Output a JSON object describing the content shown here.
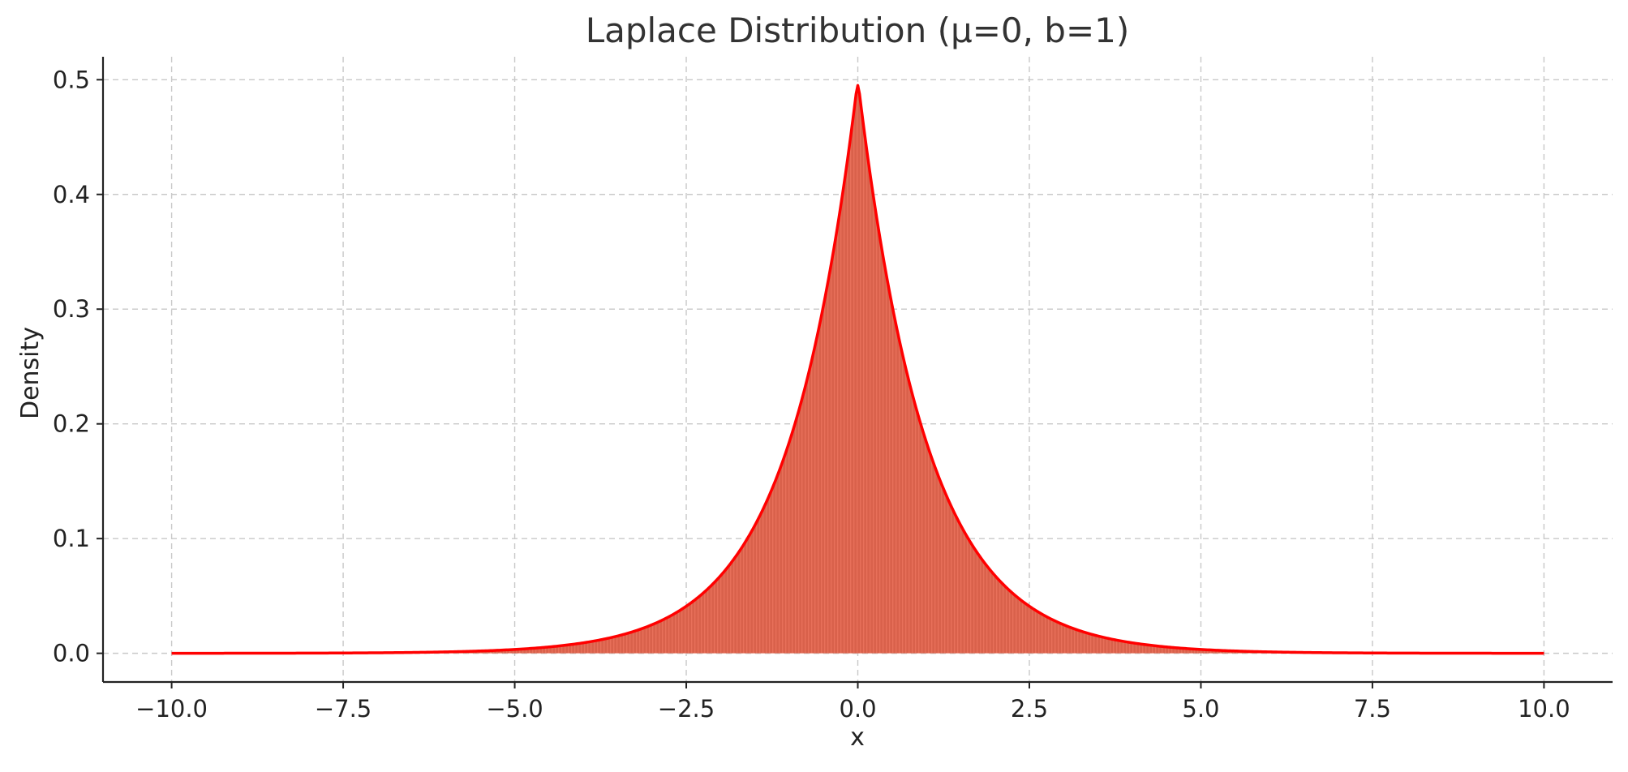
{
  "chart_data": {
    "type": "area",
    "title": "Laplace Distribution (μ=0, b=1)",
    "xlabel": "x",
    "ylabel": "Density",
    "xlim": [
      -11.0,
      11.0
    ],
    "ylim": [
      -0.025,
      0.52
    ],
    "x_ticks": [
      -10.0,
      -7.5,
      -5.0,
      -2.5,
      0.0,
      2.5,
      5.0,
      7.5,
      10.0
    ],
    "x_tick_labels": [
      "−10.0",
      "−7.5",
      "−5.0",
      "−2.5",
      "0.0",
      "2.5",
      "5.0",
      "7.5",
      "10.0"
    ],
    "y_ticks": [
      0.0,
      0.1,
      0.2,
      0.3,
      0.4,
      0.5
    ],
    "y_tick_labels": [
      "0.0",
      "0.1",
      "0.2",
      "0.3",
      "0.4",
      "0.5"
    ],
    "grid": true,
    "distribution": {
      "mu": 0,
      "b": 1
    },
    "series": [
      {
        "x": [
          -10.0,
          -9.0,
          -8.0,
          -7.0,
          -6.0,
          -5.0,
          -4.5,
          -4.0,
          -3.5,
          -3.0,
          -2.5,
          -2.0,
          -1.75,
          -1.5,
          -1.25,
          -1.0,
          -0.75,
          -0.5,
          -0.25,
          0.0,
          0.25,
          0.5,
          0.75,
          1.0,
          1.25,
          1.5,
          1.75,
          2.0,
          2.5,
          3.0,
          3.5,
          4.0,
          4.5,
          5.0,
          6.0,
          7.0,
          8.0,
          9.0,
          10.0
        ],
        "y": [
          2.27e-05,
          6.17e-05,
          0.000168,
          0.000456,
          0.00124,
          0.00337,
          0.00555,
          0.00916,
          0.0151,
          0.0249,
          0.041,
          0.0677,
          0.0869,
          0.1116,
          0.1433,
          0.1839,
          0.2362,
          0.3033,
          0.3894,
          0.495,
          0.3894,
          0.3033,
          0.2362,
          0.1839,
          0.1433,
          0.1116,
          0.0869,
          0.0677,
          0.041,
          0.0249,
          0.0151,
          0.00916,
          0.00555,
          0.00337,
          0.00124,
          0.000456,
          0.000168,
          6.17e-05,
          2.27e-05
        ]
      }
    ],
    "colors": {
      "line": "#ff0000",
      "fill": "#d9614b",
      "fill_stripe": "#e8705a"
    }
  }
}
